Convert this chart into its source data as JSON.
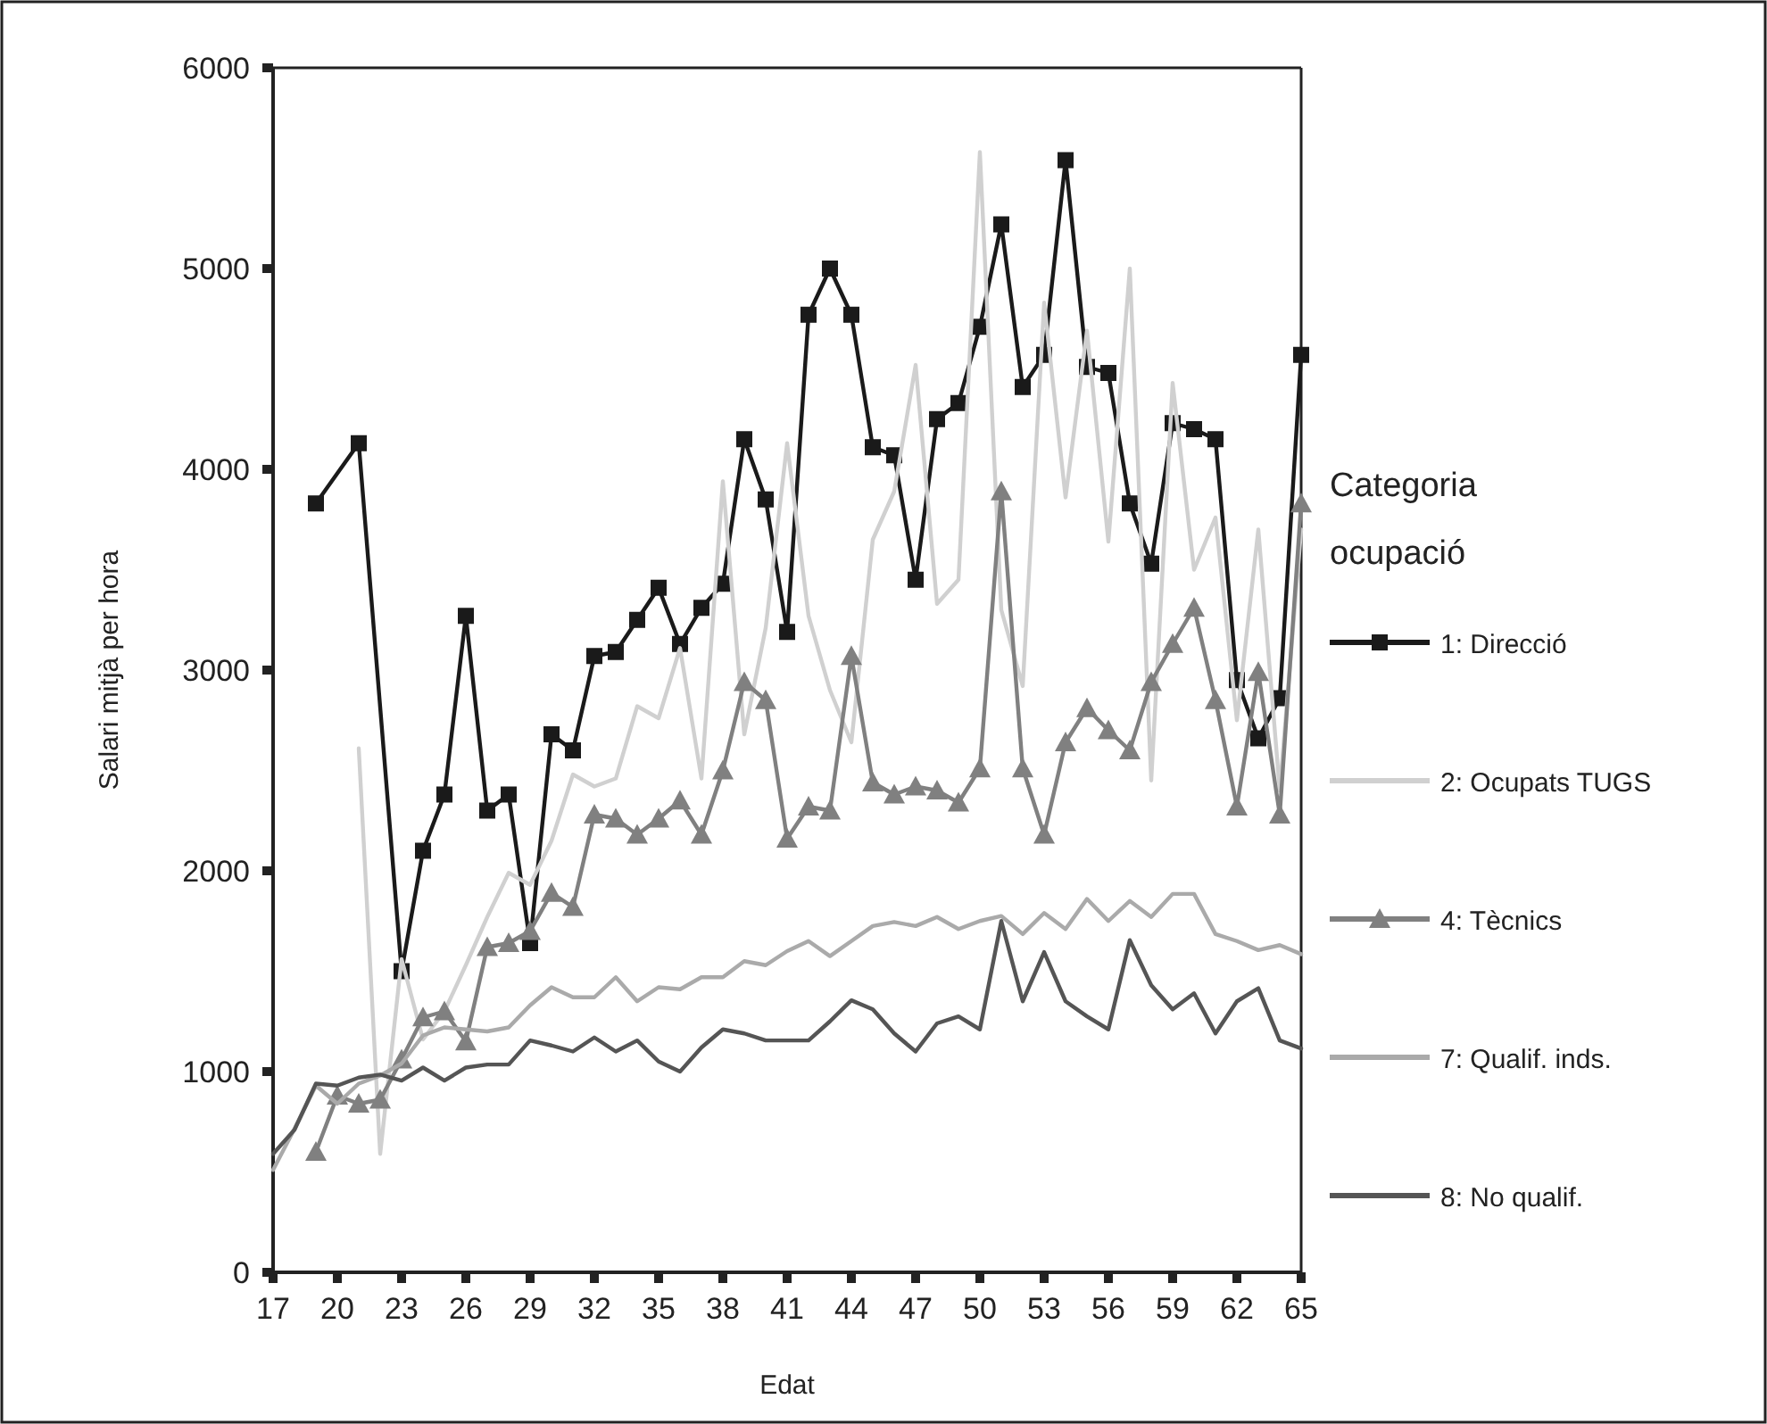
{
  "chart_data": {
    "type": "line",
    "xlabel": "Edat",
    "ylabel": "Salari mitjà per hora",
    "legend_title": "Categoria ocupació",
    "legend": "right",
    "x": [
      17,
      18,
      19,
      20,
      21,
      22,
      23,
      24,
      25,
      26,
      27,
      28,
      29,
      30,
      31,
      32,
      33,
      34,
      35,
      36,
      37,
      38,
      39,
      40,
      41,
      42,
      43,
      44,
      45,
      46,
      47,
      48,
      49,
      50,
      51,
      52,
      53,
      54,
      55,
      56,
      57,
      58,
      59,
      60,
      61,
      62,
      63,
      64,
      65
    ],
    "xlim": [
      17,
      65
    ],
    "xticks": [
      17,
      20,
      23,
      26,
      29,
      32,
      35,
      38,
      41,
      44,
      47,
      50,
      53,
      56,
      59,
      62,
      65
    ],
    "ylim": [
      0,
      6000
    ],
    "yticks": [
      0,
      1000,
      2000,
      3000,
      4000,
      5000,
      6000
    ],
    "grid": false,
    "series": [
      {
        "name": "1: Direcció",
        "color": "#1a1a1a",
        "marker": "square",
        "values": [
          null,
          null,
          3830,
          null,
          4130,
          null,
          1500,
          2100,
          2380,
          3270,
          2300,
          2380,
          1640,
          2680,
          2600,
          3070,
          3090,
          3250,
          3410,
          3130,
          3310,
          3430,
          4150,
          3850,
          3190,
          4770,
          5000,
          4770,
          4110,
          4070,
          3450,
          4250,
          4330,
          4710,
          5220,
          4410,
          4570,
          5540,
          4510,
          4480,
          3830,
          3530,
          4230,
          4200,
          4150,
          2950,
          2660,
          2860,
          4570
        ]
      },
      {
        "name": "2: Ocupats TUGS",
        "color": "#d0d0d0",
        "marker": "none",
        "values": [
          null,
          null,
          null,
          null,
          2610,
          590,
          1560,
          1160,
          1300,
          1530,
          1770,
          1990,
          1930,
          2150,
          2480,
          2420,
          2460,
          2820,
          2760,
          3110,
          2460,
          3940,
          2680,
          3210,
          4130,
          3270,
          2900,
          2640,
          3650,
          3890,
          4520,
          3330,
          3450,
          5580,
          3300,
          2920,
          4830,
          3860,
          4690,
          3640,
          5000,
          2450,
          4430,
          3500,
          3760,
          2750,
          3700,
          2400,
          3700
        ]
      },
      {
        "name": "4: Tècnics",
        "color": "#808080",
        "marker": "triangle",
        "values": [
          null,
          null,
          600,
          880,
          840,
          860,
          1060,
          1270,
          1300,
          1150,
          1620,
          1640,
          1700,
          1890,
          1820,
          2280,
          2260,
          2180,
          2260,
          2350,
          2180,
          2500,
          2940,
          2850,
          2160,
          2320,
          2300,
          3070,
          2440,
          2380,
          2420,
          2400,
          2340,
          2510,
          3890,
          2510,
          2180,
          2640,
          2810,
          2700,
          2600,
          2940,
          3130,
          3310,
          2850,
          2320,
          2990,
          2280,
          3830
        ]
      },
      {
        "name": "7: Qualif. inds.",
        "color": "#aaaaaa",
        "marker": "none",
        "values": [
          510,
          715,
          930,
          840,
          940,
          980,
          1040,
          1180,
          1220,
          1210,
          1200,
          1220,
          1330,
          1420,
          1370,
          1370,
          1470,
          1350,
          1420,
          1410,
          1470,
          1470,
          1550,
          1530,
          1600,
          1650,
          1575,
          1650,
          1725,
          1745,
          1725,
          1770,
          1710,
          1750,
          1775,
          1685,
          1790,
          1710,
          1860,
          1750,
          1850,
          1770,
          1885,
          1885,
          1685,
          1650,
          1605,
          1630,
          1585
        ]
      },
      {
        "name": "8: No qualif.",
        "color": "#555555",
        "marker": "none",
        "values": [
          590,
          710,
          940,
          930,
          970,
          985,
          955,
          1020,
          955,
          1020,
          1035,
          1035,
          1155,
          1130,
          1100,
          1170,
          1100,
          1155,
          1050,
          1000,
          1120,
          1210,
          1190,
          1155,
          1155,
          1155,
          1250,
          1355,
          1310,
          1190,
          1100,
          1240,
          1275,
          1210,
          1750,
          1350,
          1595,
          1350,
          1275,
          1210,
          1655,
          1430,
          1310,
          1390,
          1190,
          1350,
          1415,
          1155,
          1115
        ]
      }
    ]
  }
}
